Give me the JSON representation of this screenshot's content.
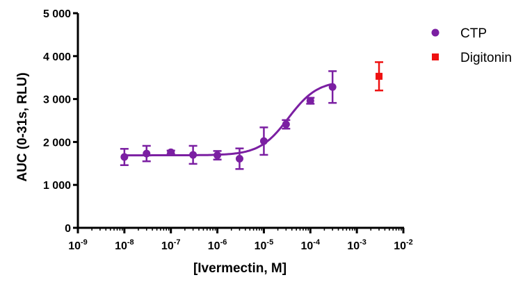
{
  "chart_data": {
    "type": "scatter",
    "xlabel": "[Ivermectin, M]",
    "ylabel": "AUC (0-31s, RLU)",
    "x_scale": "log",
    "xlim": [
      1e-09,
      0.01
    ],
    "ylim": [
      0,
      5000
    ],
    "y_ticks": [
      {
        "value": 0,
        "label": "0"
      },
      {
        "value": 1000,
        "label": "1 000"
      },
      {
        "value": 2000,
        "label": "2 000"
      },
      {
        "value": 3000,
        "label": "3 000"
      },
      {
        "value": 4000,
        "label": "4 000"
      },
      {
        "value": 5000,
        "label": "5 000"
      }
    ],
    "x_ticks": [
      {
        "value": 1e-09,
        "base": "10",
        "exp": "-9"
      },
      {
        "value": 1e-08,
        "base": "10",
        "exp": "-8"
      },
      {
        "value": 1e-07,
        "base": "10",
        "exp": "-7"
      },
      {
        "value": 1e-06,
        "base": "10",
        "exp": "-6"
      },
      {
        "value": 1e-05,
        "base": "10",
        "exp": "-5"
      },
      {
        "value": 0.0001,
        "base": "10",
        "exp": "-4"
      },
      {
        "value": 0.001,
        "base": "10",
        "exp": "-3"
      },
      {
        "value": 0.01,
        "base": "10",
        "exp": "-2"
      }
    ],
    "legend_position": "top-right",
    "series": [
      {
        "name": "CTP",
        "color": "#7b1fa2",
        "marker": "circle",
        "fit_curve": {
          "model": "sigmoidal dose-response",
          "bottom": 1690,
          "top": 3430,
          "log_ec50": -4.47,
          "hill": 1.4,
          "x_range": [
            1e-08,
            0.0003
          ]
        },
        "points": [
          {
            "x": 1e-08,
            "y": 1650,
            "err": 190
          },
          {
            "x": 3e-08,
            "y": 1730,
            "err": 180
          },
          {
            "x": 1e-07,
            "y": 1760,
            "err": 40
          },
          {
            "x": 3e-07,
            "y": 1700,
            "err": 210
          },
          {
            "x": 1e-06,
            "y": 1690,
            "err": 100
          },
          {
            "x": 3e-06,
            "y": 1610,
            "err": 240
          },
          {
            "x": 1e-05,
            "y": 2020,
            "err": 320
          },
          {
            "x": 3e-05,
            "y": 2410,
            "err": 100
          },
          {
            "x": 0.0001,
            "y": 2960,
            "err": 70
          },
          {
            "x": 0.0003,
            "y": 3280,
            "err": 370
          }
        ]
      },
      {
        "name": "Digitonin",
        "color": "#ee1111",
        "marker": "square",
        "points": [
          {
            "x": 0.003,
            "y": 3530,
            "err": 330
          }
        ]
      }
    ]
  }
}
